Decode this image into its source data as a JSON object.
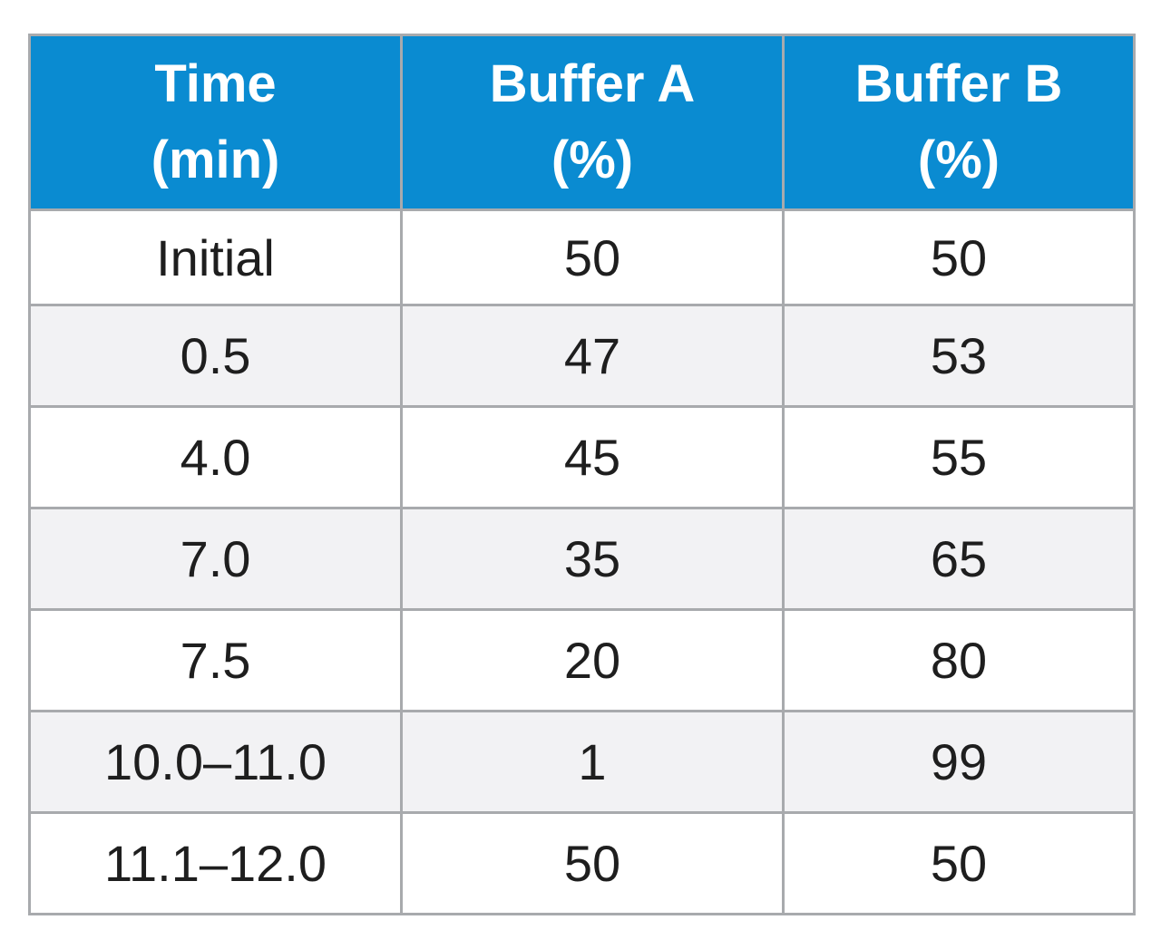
{
  "table": {
    "headers": [
      {
        "line1": "Time",
        "line2": "(min)"
      },
      {
        "line1": "Buffer A",
        "line2": "(%)"
      },
      {
        "line1": "Buffer B",
        "line2": "(%)"
      }
    ],
    "rows": [
      {
        "time": "Initial",
        "buffer_a": "50",
        "buffer_b": "50"
      },
      {
        "time": "0.5",
        "buffer_a": "47",
        "buffer_b": "53"
      },
      {
        "time": "4.0",
        "buffer_a": "45",
        "buffer_b": "55"
      },
      {
        "time": "7.0",
        "buffer_a": "35",
        "buffer_b": "65"
      },
      {
        "time": "7.5",
        "buffer_a": "20",
        "buffer_b": "80"
      },
      {
        "time": "10.0–11.0",
        "buffer_a": "1",
        "buffer_b": "99"
      },
      {
        "time": "11.1–12.0",
        "buffer_a": "50",
        "buffer_b": "50"
      }
    ]
  },
  "colors": {
    "header_background": "#0a8bd1",
    "header_text": "#ffffff",
    "row_alt_background": "#f2f2f4",
    "border": "#a8aaad"
  }
}
